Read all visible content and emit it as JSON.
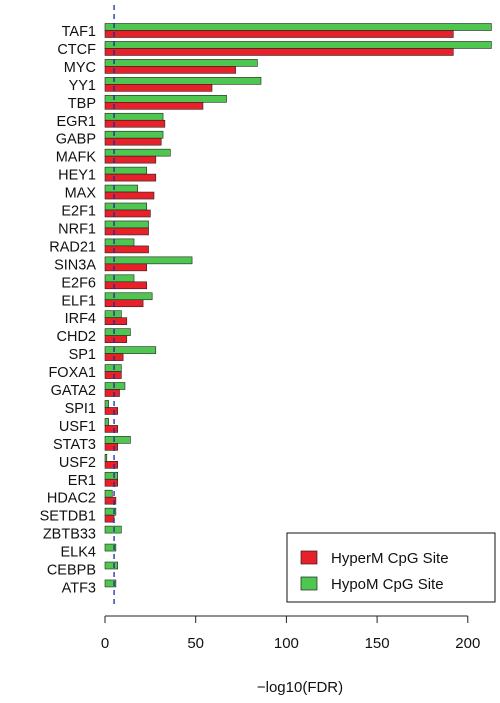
{
  "chart_data": {
    "type": "bar",
    "orientation": "horizontal",
    "categories": [
      "TAF1",
      "CTCF",
      "MYC",
      "YY1",
      "TBP",
      "EGR1",
      "GABP",
      "MAFK",
      "HEY1",
      "MAX",
      "E2F1",
      "NRF1",
      "RAD21",
      "SIN3A",
      "E2F6",
      "ELF1",
      "IRF4",
      "CHD2",
      "SP1",
      "FOXA1",
      "GATA2",
      "SPI1",
      "USF1",
      "STAT3",
      "USF2",
      "ER1",
      "HDAC2",
      "SETDB1",
      "ZBTB33",
      "ELK4",
      "CEBPB",
      "ATF3"
    ],
    "series": [
      {
        "name": "HyperM CpG Site",
        "color": "#e8202a",
        "values": [
          192,
          192,
          72,
          59,
          54,
          33,
          31,
          28,
          28,
          27,
          25,
          24,
          24,
          23,
          23,
          21,
          12,
          12,
          10,
          9,
          8,
          7,
          7,
          7,
          7,
          7,
          6,
          5,
          0,
          0,
          0,
          0
        ]
      },
      {
        "name": "HypoM CpG Site",
        "color": "#4fc64f",
        "values": [
          213,
          213,
          84,
          86,
          67,
          32,
          32,
          36,
          23,
          18,
          23,
          24,
          16,
          48,
          16,
          26,
          9,
          14,
          28,
          9,
          11,
          2,
          2,
          14,
          1,
          7,
          4,
          6,
          9,
          6,
          7,
          6
        ]
      }
    ],
    "xlabel": "−log10(FDR)",
    "xlim": [
      0,
      215
    ],
    "xticks": [
      0,
      50,
      100,
      150,
      200
    ],
    "reference_line": 5,
    "grid": false,
    "legend_position": "bottom-right"
  }
}
